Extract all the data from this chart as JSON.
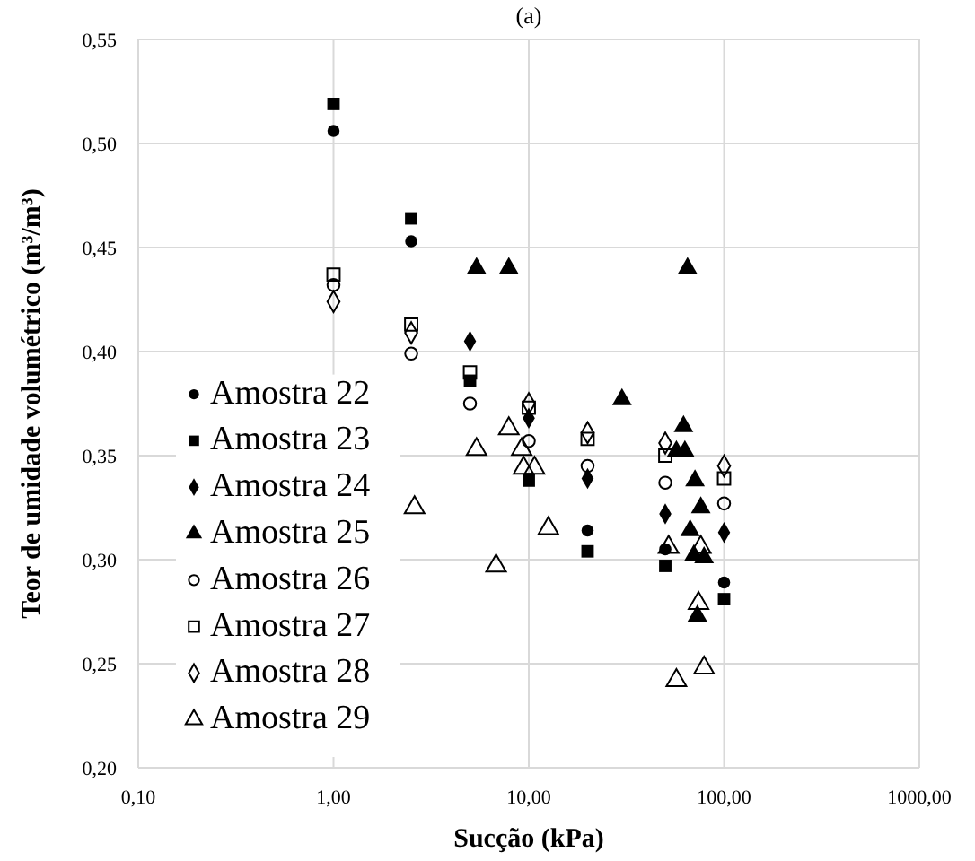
{
  "chart_data": {
    "type": "scatter",
    "title": "(a)",
    "xlabel": "Sucção (kPa)",
    "ylabel": "Teor de umidade volumétrico (m³/m³)",
    "log": "x",
    "grid": true,
    "legend": "bottom left",
    "xlim": [
      0.1,
      1000
    ],
    "xticks": [
      {
        "value": 0.1,
        "label": "0,10"
      },
      {
        "value": 1,
        "label": "1,00"
      },
      {
        "value": 10,
        "label": "10,00"
      },
      {
        "value": 100,
        "label": "100,00"
      },
      {
        "value": 1000,
        "label": "1000,00"
      }
    ],
    "ylim": [
      0.2,
      0.55
    ],
    "yticks": [
      {
        "value": 0.2,
        "label": "0,20"
      },
      {
        "value": 0.25,
        "label": "0,25"
      },
      {
        "value": 0.3,
        "label": "0,30"
      },
      {
        "value": 0.35,
        "label": "0,35"
      },
      {
        "value": 0.4,
        "label": "0,40"
      },
      {
        "value": 0.45,
        "label": "0,45"
      },
      {
        "value": 0.5,
        "label": "0,50"
      },
      {
        "value": 0.55,
        "label": "0,55"
      }
    ],
    "series": [
      {
        "name": "Amostra 22",
        "color": "#000000",
        "marker": "circle",
        "x": [
          1,
          2.5,
          20,
          50,
          100
        ],
        "values": [
          0.506,
          0.453,
          0.314,
          0.305,
          0.289
        ]
      },
      {
        "name": "Amostra 23",
        "color": "#000000",
        "marker": "square",
        "x": [
          1,
          2.5,
          5,
          10,
          20,
          50,
          100
        ],
        "values": [
          0.519,
          0.464,
          0.386,
          0.338,
          0.304,
          0.297,
          0.281
        ]
      },
      {
        "name": "Amostra 24",
        "color": "#000000",
        "marker": "diamond",
        "x": [
          5,
          10,
          20,
          50,
          100
        ],
        "values": [
          0.405,
          0.368,
          0.339,
          0.322,
          0.313
        ]
      },
      {
        "name": "Amostra 25",
        "color": "#000000",
        "marker": "triangle",
        "x": [
          5.4,
          7.9,
          30,
          57,
          62,
          63,
          65,
          67,
          70,
          71,
          73,
          76,
          79
        ],
        "values": [
          0.44,
          0.44,
          0.377,
          0.352,
          0.364,
          0.352,
          0.44,
          0.314,
          0.302,
          0.338,
          0.273,
          0.325,
          0.301
        ]
      },
      {
        "name": "Amostra 26",
        "color": "#000000",
        "marker": "circle",
        "x": [
          1,
          2.5,
          5,
          10,
          20,
          50,
          100
        ],
        "values": [
          0.432,
          0.399,
          0.375,
          0.357,
          0.345,
          0.337,
          0.327
        ]
      },
      {
        "name": "Amostra 27",
        "color": "#000000",
        "marker": "square",
        "x": [
          1,
          2.5,
          5,
          10,
          20,
          50,
          100
        ],
        "values": [
          0.437,
          0.413,
          0.39,
          0.373,
          0.358,
          0.35,
          0.339
        ]
      },
      {
        "name": "Amostra 28",
        "color": "#000000",
        "marker": "diamond",
        "x": [
          1,
          2.5,
          10,
          20,
          50,
          100
        ],
        "values": [
          0.424,
          0.409,
          0.375,
          0.361,
          0.356,
          0.345
        ]
      },
      {
        "name": "Amostra 29",
        "color": "#000000",
        "marker": "triangle",
        "x": [
          2.6,
          5.4,
          6.8,
          7.9,
          9.2,
          9.4,
          10.7,
          12.6,
          52,
          57,
          74,
          76,
          79
        ],
        "values": [
          0.325,
          0.353,
          0.297,
          0.363,
          0.353,
          0.344,
          0.344,
          0.315,
          0.306,
          0.242,
          0.279,
          0.306,
          0.248
        ]
      }
    ]
  }
}
